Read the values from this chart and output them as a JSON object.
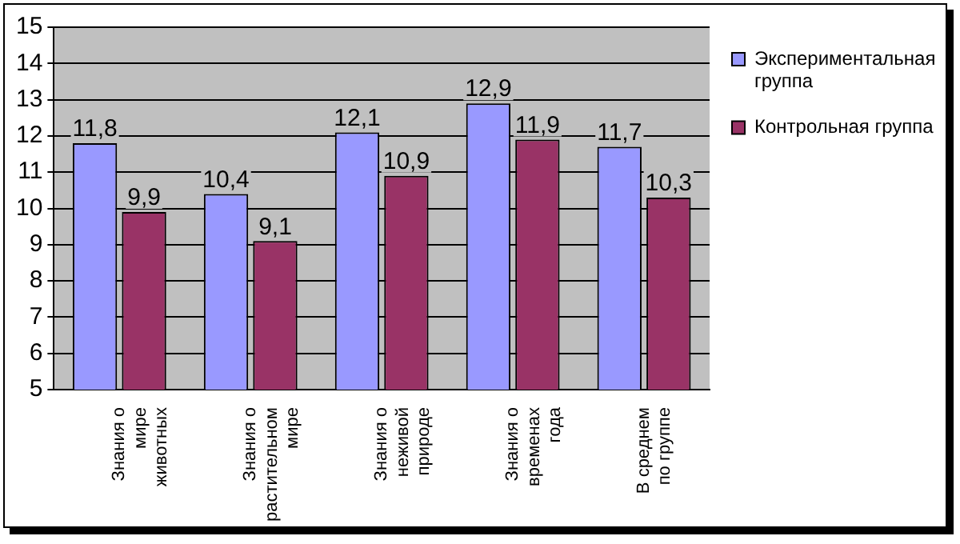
{
  "chart_data": {
    "type": "bar",
    "categories": [
      "Знания о мире животных",
      "Знания о растительном мире",
      "Знания о неживой природе",
      "Знания о временах года",
      "В среднем по группе"
    ],
    "series": [
      {
        "name": "Экспериментальная группа",
        "color": "#9999ff",
        "values": [
          11.8,
          10.4,
          12.1,
          12.9,
          11.7
        ],
        "value_labels": [
          "11,8",
          "10,4",
          "12,1",
          "12,9",
          "11,7"
        ]
      },
      {
        "name": "Контрольная группа",
        "color": "#993366",
        "values": [
          9.9,
          9.1,
          10.9,
          11.9,
          10.3
        ],
        "value_labels": [
          "9,9",
          "9,1",
          "10,9",
          "11,9",
          "10,3"
        ]
      }
    ],
    "ylim": [
      5,
      15
    ],
    "yticks": [
      5,
      6,
      7,
      8,
      9,
      10,
      11,
      12,
      13,
      14,
      15
    ],
    "grid": "y",
    "legend": "top right"
  }
}
